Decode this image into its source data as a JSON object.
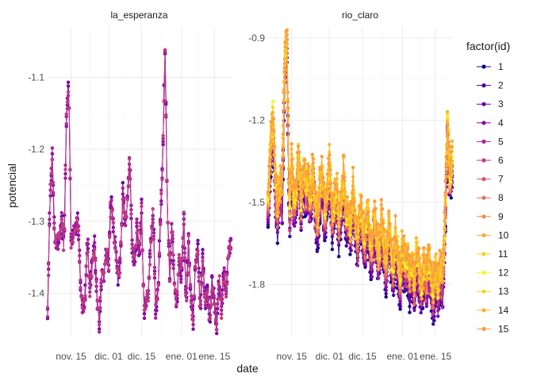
{
  "chart_data": {
    "type": "line",
    "xlabel": "date",
    "ylabel": "potencial",
    "legend": {
      "title": "factor(id)",
      "placement": "right"
    },
    "x_ticks": [
      "nov. 15",
      "dic. 01",
      "dic. 15",
      "ene. 01",
      "ene. 15"
    ],
    "x_tick_dates": [
      "2023-11-15",
      "2023-12-01",
      "2023-12-15",
      "2024-01-01",
      "2024-01-15"
    ],
    "x_range": [
      "2023-11-05",
      "2024-01-22"
    ],
    "series_colors": [
      "#0d0887",
      "#3e049c",
      "#6300a7",
      "#8606a6",
      "#a62098",
      "#c03a83",
      "#d5546e",
      "#e76f5a",
      "#f58c46",
      "#fdad32",
      "#fcce25",
      "#f0f921",
      "#fdd325",
      "#fcb52c",
      "#fa9e3b"
    ],
    "series_names": [
      "1",
      "2",
      "3",
      "4",
      "5",
      "6",
      "7",
      "8",
      "9",
      "10",
      "11",
      "12",
      "13",
      "14",
      "15"
    ],
    "panels": [
      {
        "name": "la_esperanza",
        "ylim": [
          -1.46,
          -1.03
        ],
        "y_ticks": [
          -1.1,
          -1.2,
          -1.3,
          -1.4
        ],
        "y_tick_labels": [
          "-1.1",
          "-1.2",
          "-1.3",
          "-1.4"
        ],
        "series_count": 4,
        "series_ids": [
          "1",
          "2",
          "3",
          "4"
        ],
        "key_points": [
          [
            "2023-11-05",
            -1.43
          ],
          [
            "2023-11-06",
            -1.27
          ],
          [
            "2023-11-07",
            -1.21
          ],
          [
            "2023-11-08",
            -1.33
          ],
          [
            "2023-11-10",
            -1.33
          ],
          [
            "2023-11-11",
            -1.3
          ],
          [
            "2023-11-12",
            -1.34
          ],
          [
            "2023-11-13",
            -1.16
          ],
          [
            "2023-11-14",
            -1.11
          ],
          [
            "2023-11-15",
            -1.33
          ],
          [
            "2023-11-16",
            -1.32
          ],
          [
            "2023-11-18",
            -1.3
          ],
          [
            "2023-11-19",
            -1.39
          ],
          [
            "2023-11-20",
            -1.43
          ],
          [
            "2023-11-21",
            -1.4
          ],
          [
            "2023-11-22",
            -1.32
          ],
          [
            "2023-11-23",
            -1.4
          ],
          [
            "2023-11-24",
            -1.36
          ],
          [
            "2023-11-25",
            -1.33
          ],
          [
            "2023-11-26",
            -1.41
          ],
          [
            "2023-11-27",
            -1.45
          ],
          [
            "2023-11-28",
            -1.37
          ],
          [
            "2023-11-29",
            -1.38
          ],
          [
            "2023-11-30",
            -1.34
          ],
          [
            "2023-12-01",
            -1.36
          ],
          [
            "2023-12-02",
            -1.27
          ],
          [
            "2023-12-03",
            -1.31
          ],
          [
            "2023-12-04",
            -1.34
          ],
          [
            "2023-12-05",
            -1.38
          ],
          [
            "2023-12-06",
            -1.36
          ],
          [
            "2023-12-07",
            -1.26
          ],
          [
            "2023-12-08",
            -1.31
          ],
          [
            "2023-12-09",
            -1.27
          ],
          [
            "2023-12-10",
            -1.21
          ],
          [
            "2023-12-11",
            -1.34
          ],
          [
            "2023-12-12",
            -1.36
          ],
          [
            "2023-12-13",
            -1.31
          ],
          [
            "2023-12-14",
            -1.35
          ],
          [
            "2023-12-15",
            -1.28
          ],
          [
            "2023-12-16",
            -1.43
          ],
          [
            "2023-12-18",
            -1.4
          ],
          [
            "2023-12-19",
            -1.32
          ],
          [
            "2023-12-20",
            -1.29
          ],
          [
            "2023-12-21",
            -1.43
          ],
          [
            "2023-12-22",
            -1.4
          ],
          [
            "2023-12-23",
            -1.3
          ],
          [
            "2023-12-24",
            -1.22
          ],
          [
            "2023-12-25",
            -1.06
          ],
          [
            "2023-12-26",
            -1.28
          ],
          [
            "2023-12-27",
            -1.38
          ],
          [
            "2023-12-28",
            -1.3
          ],
          [
            "2023-12-29",
            -1.4
          ],
          [
            "2023-12-30",
            -1.42
          ],
          [
            "2023-12-31",
            -1.36
          ],
          [
            "2024-01-01",
            -1.38
          ],
          [
            "2024-01-02",
            -1.3
          ],
          [
            "2024-01-03",
            -1.42
          ],
          [
            "2024-01-04",
            -1.33
          ],
          [
            "2024-01-05",
            -1.41
          ],
          [
            "2024-01-06",
            -1.44
          ],
          [
            "2024-01-07",
            -1.36
          ],
          [
            "2024-01-08",
            -1.34
          ],
          [
            "2024-01-09",
            -1.43
          ],
          [
            "2024-01-10",
            -1.35
          ],
          [
            "2024-01-11",
            -1.42
          ],
          [
            "2024-01-12",
            -1.39
          ],
          [
            "2024-01-13",
            -1.44
          ],
          [
            "2024-01-14",
            -1.39
          ],
          [
            "2024-01-15",
            -1.41
          ],
          [
            "2024-01-16",
            -1.45
          ],
          [
            "2024-01-17",
            -1.38
          ],
          [
            "2024-01-18",
            -1.43
          ],
          [
            "2024-01-19",
            -1.37
          ],
          [
            "2024-01-20",
            -1.4
          ],
          [
            "2024-01-21",
            -1.35
          ],
          [
            "2024-01-22",
            -1.33
          ]
        ]
      },
      {
        "name": "rio_claro",
        "ylim": [
          -1.99,
          -0.86
        ],
        "y_ticks": [
          -0.9,
          -1.2,
          -1.5,
          -1.8
        ],
        "y_tick_labels": [
          "-0.9",
          "-1.2",
          "-1.5",
          "-1.8"
        ],
        "series_count": 15,
        "series_ids": [
          "1",
          "2",
          "3",
          "4",
          "5",
          "6",
          "7",
          "8",
          "9",
          "10",
          "11",
          "12",
          "13",
          "14",
          "15"
        ],
        "key_points": [
          [
            "2023-11-05",
            -1.58
          ],
          [
            "2023-11-06",
            -1.35
          ],
          [
            "2023-11-07",
            -1.23
          ],
          [
            "2023-11-08",
            -1.46
          ],
          [
            "2023-11-09",
            -1.57
          ],
          [
            "2023-11-10",
            -1.48
          ],
          [
            "2023-11-11",
            -1.52
          ],
          [
            "2023-11-12",
            -1.05
          ],
          [
            "2023-11-13",
            -0.93
          ],
          [
            "2023-11-14",
            -1.6
          ],
          [
            "2023-11-15",
            -1.4
          ],
          [
            "2023-11-16",
            -1.55
          ],
          [
            "2023-11-17",
            -1.48
          ],
          [
            "2023-11-18",
            -1.38
          ],
          [
            "2023-11-19",
            -1.55
          ],
          [
            "2023-11-20",
            -1.42
          ],
          [
            "2023-11-21",
            -1.5
          ],
          [
            "2023-11-22",
            -1.45
          ],
          [
            "2023-11-23",
            -1.58
          ],
          [
            "2023-11-24",
            -1.4
          ],
          [
            "2023-11-25",
            -1.55
          ],
          [
            "2023-11-26",
            -1.62
          ],
          [
            "2023-11-27",
            -1.5
          ],
          [
            "2023-11-28",
            -1.45
          ],
          [
            "2023-11-29",
            -1.58
          ],
          [
            "2023-11-30",
            -1.52
          ],
          [
            "2023-12-01",
            -1.4
          ],
          [
            "2023-12-02",
            -1.6
          ],
          [
            "2023-12-03",
            -1.55
          ],
          [
            "2023-12-04",
            -1.48
          ],
          [
            "2023-12-05",
            -1.62
          ],
          [
            "2023-12-06",
            -1.55
          ],
          [
            "2023-12-07",
            -1.45
          ],
          [
            "2023-12-08",
            -1.6
          ],
          [
            "2023-12-09",
            -1.58
          ],
          [
            "2023-12-10",
            -1.65
          ],
          [
            "2023-12-11",
            -1.5
          ],
          [
            "2023-12-12",
            -1.62
          ],
          [
            "2023-12-13",
            -1.68
          ],
          [
            "2023-12-14",
            -1.55
          ],
          [
            "2023-12-15",
            -1.63
          ],
          [
            "2023-12-16",
            -1.7
          ],
          [
            "2023-12-17",
            -1.58
          ],
          [
            "2023-12-18",
            -1.66
          ],
          [
            "2023-12-19",
            -1.72
          ],
          [
            "2023-12-20",
            -1.6
          ],
          [
            "2023-12-21",
            -1.68
          ],
          [
            "2023-12-22",
            -1.75
          ],
          [
            "2023-12-23",
            -1.62
          ],
          [
            "2023-12-24",
            -1.7
          ],
          [
            "2023-12-25",
            -1.78
          ],
          [
            "2023-12-26",
            -1.65
          ],
          [
            "2023-12-27",
            -1.72
          ],
          [
            "2023-12-28",
            -1.8
          ],
          [
            "2023-12-29",
            -1.68
          ],
          [
            "2023-12-30",
            -1.75
          ],
          [
            "2023-12-31",
            -1.82
          ],
          [
            "2024-01-01",
            -1.7
          ],
          [
            "2024-01-02",
            -1.78
          ],
          [
            "2024-01-03",
            -1.74
          ],
          [
            "2024-01-04",
            -1.82
          ],
          [
            "2024-01-05",
            -1.76
          ],
          [
            "2024-01-06",
            -1.85
          ],
          [
            "2024-01-07",
            -1.73
          ],
          [
            "2024-01-08",
            -1.8
          ],
          [
            "2024-01-09",
            -1.86
          ],
          [
            "2024-01-10",
            -1.78
          ],
          [
            "2024-01-11",
            -1.84
          ],
          [
            "2024-01-12",
            -1.75
          ],
          [
            "2024-01-13",
            -1.82
          ],
          [
            "2024-01-14",
            -1.88
          ],
          [
            "2024-01-15",
            -1.8
          ],
          [
            "2024-01-16",
            -1.86
          ],
          [
            "2024-01-17",
            -1.78
          ],
          [
            "2024-01-18",
            -1.84
          ],
          [
            "2024-01-19",
            -1.62
          ],
          [
            "2024-01-20",
            -1.25
          ],
          [
            "2024-01-21",
            -1.45
          ],
          [
            "2024-01-22",
            -1.4
          ]
        ]
      }
    ],
    "grid": true
  }
}
